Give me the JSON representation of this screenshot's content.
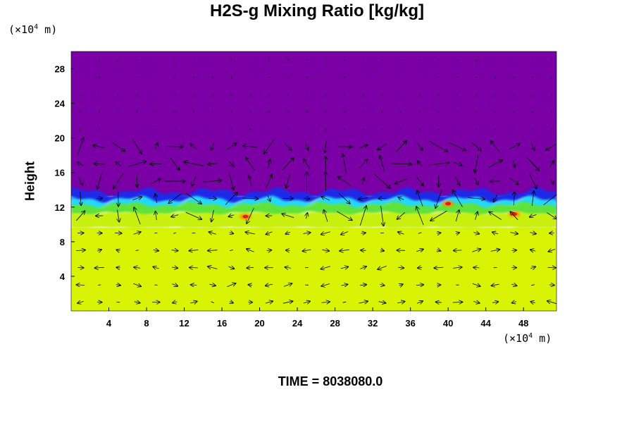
{
  "chart_data": {
    "type": "heatmap",
    "title": "H2S-g Mixing Ratio [kg/kg]",
    "xlabel": "",
    "ylabel": "Height",
    "x_unit": {
      "prefix": "(×10",
      "exp": "4",
      "suffix": " m)"
    },
    "y_unit": {
      "prefix": "(×10",
      "exp": "4",
      "suffix": " m)"
    },
    "xlim": [
      0,
      51.5
    ],
    "ylim": [
      0,
      30
    ],
    "x_ticks": [
      4,
      8,
      12,
      16,
      20,
      24,
      28,
      32,
      36,
      40,
      44,
      48
    ],
    "y_ticks": [
      4,
      8,
      12,
      16,
      20,
      24,
      28
    ],
    "colors": {
      "upper": "#7a00a6",
      "blue": "#1a2ae8",
      "cyan": "#22d8ff",
      "green": "#5ee23a",
      "lime": "#c8ef10",
      "lower": "#d8f404",
      "red": "#e61a1a",
      "orange": "#ff8a00"
    },
    "layers": [
      {
        "name": "upper",
        "y_from": 13.3,
        "y_to": 30
      },
      {
        "name": "blue",
        "y_from": 12.7,
        "y_to": 13.8
      },
      {
        "name": "cyan",
        "y_from": 12.0,
        "y_to": 12.9
      },
      {
        "name": "green",
        "y_from": 11.2,
        "y_to": 12.3
      },
      {
        "name": "lime",
        "y_from": 9.6,
        "y_to": 11.3
      },
      {
        "name": "lower",
        "y_from": 0,
        "y_to": 9.6
      }
    ],
    "hot_spots": [
      {
        "x": 40.0,
        "y": 12.4
      },
      {
        "x": 47.0,
        "y": 11.2
      },
      {
        "x": 18.5,
        "y": 10.9
      }
    ],
    "vector_field": {
      "x_spacing": 2.0,
      "y_spacing": 2.0,
      "x_start": 1.0,
      "y_start": 1.0
    }
  },
  "time_label": "TIME = 8038080.0"
}
